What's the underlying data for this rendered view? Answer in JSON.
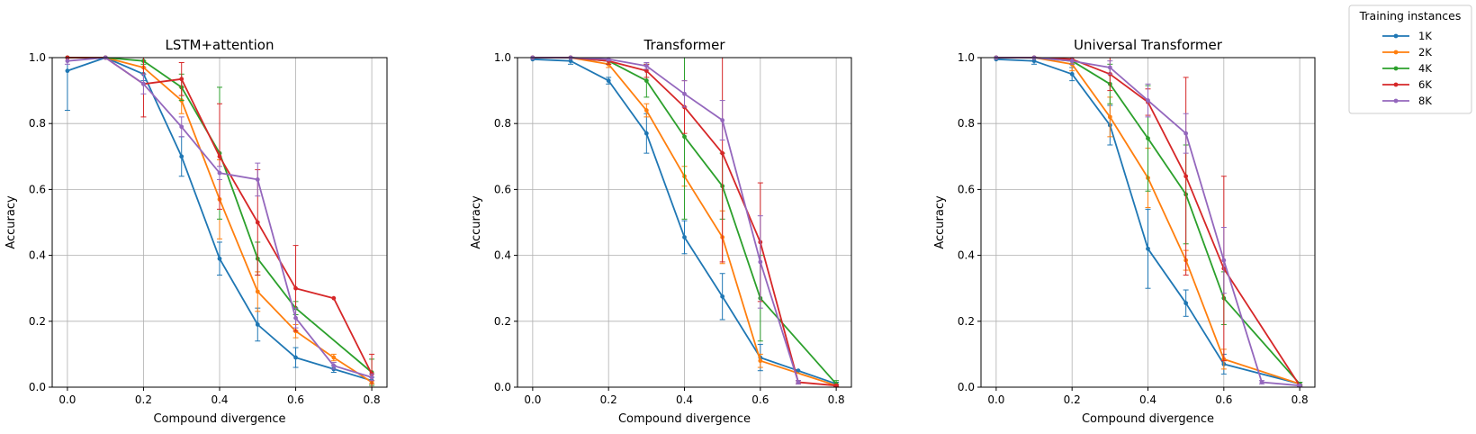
{
  "legend": {
    "title": "Training instances",
    "placement": "outside-top-right"
  },
  "chart_data": [
    {
      "type": "line",
      "title": "LSTM+attention",
      "xlabel": "Compound divergence",
      "ylabel": "Accuracy",
      "xlim": [
        -0.04,
        0.84
      ],
      "ylim": [
        0,
        1
      ],
      "xticks": [
        "0.0",
        "0.2",
        "0.4",
        "0.6",
        "0.8"
      ],
      "yticks": [
        "0.0",
        "0.2",
        "0.4",
        "0.6",
        "0.8",
        "1.0"
      ],
      "grid": true,
      "error_bars": true,
      "series": [
        {
          "name": "1K",
          "color": "#1f77b4",
          "x": [
            0.0,
            0.1,
            0.2,
            0.3,
            0.4,
            0.5,
            0.6,
            0.7,
            0.8
          ],
          "y": [
            0.96,
            1.0,
            0.95,
            0.7,
            0.39,
            0.19,
            0.09,
            0.055,
            0.02
          ],
          "err": [
            0.12,
            0.0,
            0.02,
            0.06,
            0.05,
            0.05,
            0.03,
            0.01,
            0.01
          ]
        },
        {
          "name": "2K",
          "color": "#ff7f0e",
          "x": [
            0.0,
            0.1,
            0.2,
            0.3,
            0.4,
            0.5,
            0.6,
            0.7,
            0.8
          ],
          "y": [
            1.0,
            1.0,
            0.97,
            0.87,
            0.57,
            0.29,
            0.17,
            0.09,
            0.015
          ],
          "err": [
            0.0,
            0.0,
            0.02,
            0.04,
            0.12,
            0.06,
            0.02,
            0.01,
            0.005
          ]
        },
        {
          "name": "4K",
          "color": "#2ca02c",
          "x": [
            0.0,
            0.1,
            0.2,
            0.3,
            0.4,
            0.5,
            0.6,
            0.8
          ],
          "y": [
            1.0,
            1.0,
            0.99,
            0.91,
            0.71,
            0.39,
            0.24,
            0.045
          ],
          "err": [
            0.0,
            0.0,
            0.01,
            0.04,
            0.2,
            0.05,
            0.02,
            0.04
          ]
        },
        {
          "name": "6K",
          "color": "#d62728",
          "x": [
            0.0,
            0.1,
            0.2,
            0.3,
            0.4,
            0.5,
            0.6,
            0.7,
            0.8
          ],
          "y": [
            1.0,
            1.0,
            0.92,
            0.935,
            0.7,
            0.5,
            0.3,
            0.27,
            0.04
          ],
          "err": [
            0.0,
            0.0,
            0.1,
            0.05,
            0.16,
            0.16,
            0.13,
            0.0,
            0.06
          ]
        },
        {
          "name": "8K",
          "color": "#9467bd",
          "x": [
            0.0,
            0.1,
            0.2,
            0.3,
            0.4,
            0.5,
            0.6,
            0.7,
            0.8
          ],
          "y": [
            0.99,
            1.0,
            0.92,
            0.79,
            0.65,
            0.63,
            0.21,
            0.065,
            0.03
          ],
          "err": [
            0.01,
            0.0,
            0.03,
            0.03,
            0.02,
            0.05,
            0.03,
            0.01,
            0.01
          ]
        }
      ]
    },
    {
      "type": "line",
      "title": "Transformer",
      "xlabel": "Compound divergence",
      "ylabel": "Accuracy",
      "xlim": [
        -0.04,
        0.84
      ],
      "ylim": [
        0,
        1
      ],
      "xticks": [
        "0.0",
        "0.2",
        "0.4",
        "0.6",
        "0.8"
      ],
      "yticks": [
        "0.0",
        "0.2",
        "0.4",
        "0.6",
        "0.8",
        "1.0"
      ],
      "grid": true,
      "error_bars": true,
      "series": [
        {
          "name": "1K",
          "color": "#1f77b4",
          "x": [
            0.0,
            0.1,
            0.2,
            0.3,
            0.4,
            0.5,
            0.6,
            0.7,
            0.8
          ],
          "y": [
            0.995,
            0.99,
            0.93,
            0.77,
            0.455,
            0.275,
            0.09,
            0.05,
            0.01
          ],
          "err": [
            0.0,
            0.01,
            0.01,
            0.06,
            0.05,
            0.07,
            0.04,
            0.0,
            0.005
          ]
        },
        {
          "name": "2K",
          "color": "#ff7f0e",
          "x": [
            0.0,
            0.1,
            0.2,
            0.3,
            0.4,
            0.5,
            0.6,
            0.8
          ],
          "y": [
            1.0,
            1.0,
            0.98,
            0.84,
            0.64,
            0.455,
            0.08,
            0.005
          ],
          "err": [
            0.0,
            0.0,
            0.01,
            0.02,
            0.03,
            0.08,
            0.02,
            0.003
          ]
        },
        {
          "name": "4K",
          "color": "#2ca02c",
          "x": [
            0.0,
            0.1,
            0.2,
            0.3,
            0.4,
            0.5,
            0.6,
            0.8
          ],
          "y": [
            1.0,
            1.0,
            0.99,
            0.93,
            0.76,
            0.61,
            0.27,
            0.01
          ],
          "err": [
            0.0,
            0.0,
            0.01,
            0.05,
            0.25,
            0.1,
            0.13,
            0.01
          ]
        },
        {
          "name": "6K",
          "color": "#d62728",
          "x": [
            0.0,
            0.1,
            0.2,
            0.3,
            0.4,
            0.5,
            0.6,
            0.7,
            0.8
          ],
          "y": [
            1.0,
            1.0,
            0.99,
            0.96,
            0.85,
            0.71,
            0.44,
            0.015,
            0.005
          ],
          "err": [
            0.0,
            0.0,
            0.01,
            0.02,
            0.08,
            0.33,
            0.18,
            0.005,
            0.003
          ]
        },
        {
          "name": "8K",
          "color": "#9467bd",
          "x": [
            0.0,
            0.1,
            0.2,
            0.3,
            0.4,
            0.5,
            0.6,
            0.7
          ],
          "y": [
            1.0,
            1.0,
            0.995,
            0.975,
            0.89,
            0.81,
            0.38,
            0.015
          ],
          "err": [
            0.0,
            0.0,
            0.005,
            0.01,
            0.04,
            0.06,
            0.14,
            0.005
          ]
        }
      ]
    },
    {
      "type": "line",
      "title": "Universal Transformer",
      "xlabel": "Compound divergence",
      "ylabel": "Accuracy",
      "xlim": [
        -0.04,
        0.84
      ],
      "ylim": [
        0,
        1
      ],
      "xticks": [
        "0.0",
        "0.2",
        "0.4",
        "0.6",
        "0.8"
      ],
      "yticks": [
        "0.0",
        "0.2",
        "0.4",
        "0.6",
        "0.8",
        "1.0"
      ],
      "grid": true,
      "error_bars": true,
      "series": [
        {
          "name": "1K",
          "color": "#1f77b4",
          "x": [
            0.0,
            0.1,
            0.2,
            0.3,
            0.4,
            0.5,
            0.6,
            0.8
          ],
          "y": [
            0.995,
            0.99,
            0.95,
            0.795,
            0.42,
            0.255,
            0.07,
            0.01
          ],
          "err": [
            0.0,
            0.01,
            0.02,
            0.06,
            0.12,
            0.04,
            0.03,
            0.005
          ]
        },
        {
          "name": "2K",
          "color": "#ff7f0e",
          "x": [
            0.0,
            0.1,
            0.2,
            0.3,
            0.4,
            0.5,
            0.6,
            0.8
          ],
          "y": [
            1.0,
            1.0,
            0.98,
            0.82,
            0.635,
            0.385,
            0.085,
            0.01
          ],
          "err": [
            0.0,
            0.0,
            0.02,
            0.06,
            0.09,
            0.03,
            0.03,
            0.005
          ]
        },
        {
          "name": "4K",
          "color": "#2ca02c",
          "x": [
            0.0,
            0.1,
            0.2,
            0.3,
            0.4,
            0.5,
            0.6,
            0.8
          ],
          "y": [
            1.0,
            1.0,
            0.99,
            0.92,
            0.755,
            0.585,
            0.27,
            0.01
          ],
          "err": [
            0.0,
            0.0,
            0.01,
            0.06,
            0.16,
            0.15,
            0.08,
            0.005
          ]
        },
        {
          "name": "6K",
          "color": "#d62728",
          "x": [
            0.0,
            0.1,
            0.2,
            0.3,
            0.4,
            0.5,
            0.6,
            0.8
          ],
          "y": [
            1.0,
            1.0,
            0.995,
            0.95,
            0.865,
            0.64,
            0.36,
            0.005
          ],
          "err": [
            0.0,
            0.0,
            0.005,
            0.05,
            0.04,
            0.3,
            0.28,
            0.003
          ]
        },
        {
          "name": "8K",
          "color": "#9467bd",
          "x": [
            0.0,
            0.1,
            0.2,
            0.3,
            0.4,
            0.5,
            0.6,
            0.7,
            0.8
          ],
          "y": [
            1.0,
            1.0,
            0.99,
            0.97,
            0.87,
            0.77,
            0.385,
            0.015,
            0.005
          ],
          "err": [
            0.0,
            0.0,
            0.01,
            0.02,
            0.05,
            0.06,
            0.1,
            0.005,
            0.003
          ]
        }
      ]
    }
  ]
}
